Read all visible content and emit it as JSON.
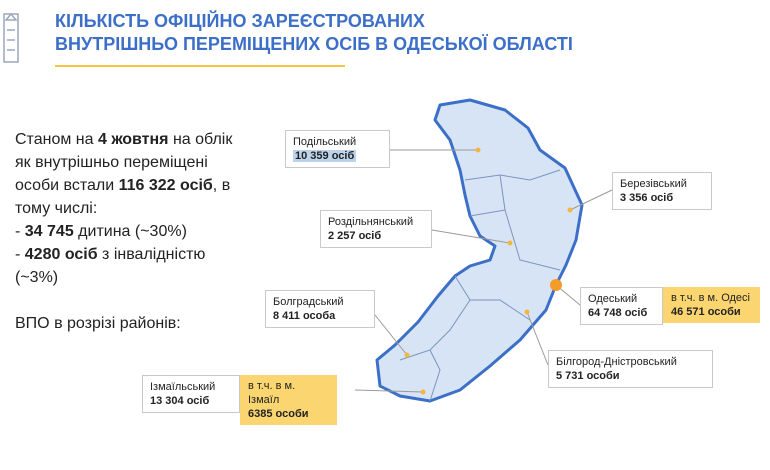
{
  "header": {
    "title_lines": [
      "КІЛЬКІСТЬ ОФІЦІЙНО ЗАРЕЄСТРОВАНИХ",
      "ВНУТРІШНЬО ПЕРЕМІЩЕНИХ ОСІБ В ОДЕСЬКОЇ ОБЛАСТІ"
    ]
  },
  "intro": {
    "lines": [
      [
        {
          "text": "Станом на ",
          "bold": false
        },
        {
          "text": "4 жовтня",
          "bold": true
        },
        {
          "text": " на облік",
          "bold": false
        }
      ],
      [
        {
          "text": "як внутрішньо переміщені",
          "bold": false
        }
      ],
      [
        {
          "text": "особи встали ",
          "bold": false
        },
        {
          "text": "116 322 осіб",
          "bold": true
        },
        {
          "text": ", в",
          "bold": false
        }
      ],
      [
        {
          "text": "тому числі:",
          "bold": false
        }
      ],
      [
        {
          "text": "- ",
          "bold": false
        },
        {
          "text": "34 745",
          "bold": true
        },
        {
          "text": " дитина (~30%)",
          "bold": false
        }
      ],
      [
        {
          "text": "- ",
          "bold": false
        },
        {
          "text": "4280 осіб",
          "bold": true
        },
        {
          "text": " з інвалідністю",
          "bold": false
        }
      ],
      [
        {
          "text": "(~3%)",
          "bold": false
        }
      ]
    ],
    "section_label": "ВПО в розрізі районів:"
  },
  "districts": [
    {
      "name": "Подільський",
      "count": "10 359 осіб",
      "highlight": true
    },
    {
      "name": "Березівський",
      "count": "3 356 осіб"
    },
    {
      "name": "Роздільнянський",
      "count": "2 257 осіб"
    },
    {
      "name": "Болградський",
      "count": "8 411 особа"
    },
    {
      "name": "Одеський",
      "count": "64 748 осіб",
      "city_label": "в т.ч. в м. Одесі",
      "city_count": "46 571 особи"
    },
    {
      "name": "Білгород-Дністровський",
      "count": "5 731 особи"
    },
    {
      "name": "Ізмаїльський",
      "count": "13 304 осіб",
      "city_label": "в т.ч. в м. Ізмаїл",
      "city_count": "6385 особи"
    }
  ]
}
